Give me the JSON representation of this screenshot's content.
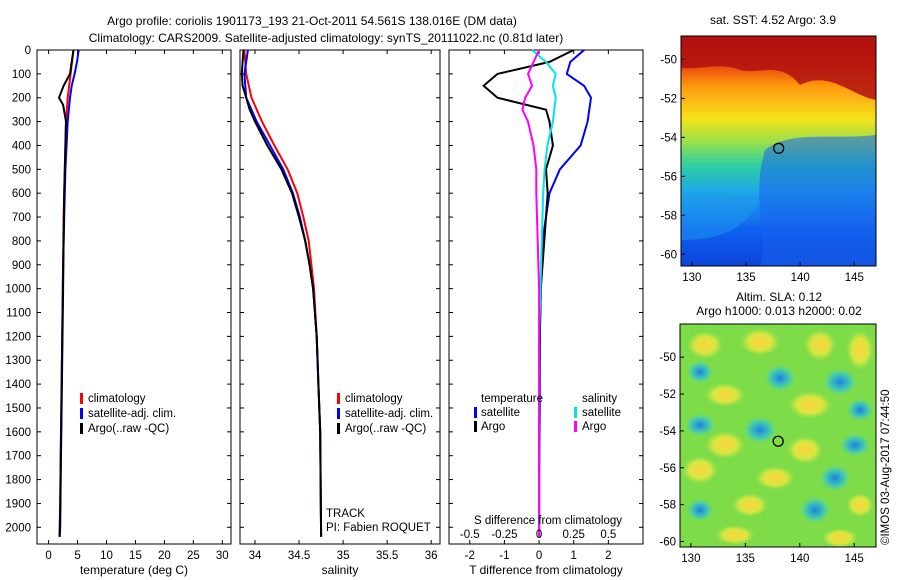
{
  "header": {
    "title_line1": "Argo profile: coriolis 1901173_193 21-Oct-2011 54.561S 138.016E (DM data)",
    "title_line2": "Climatology: CARS2009. Satellite-adjusted climatology: synTS_20111022.nc (0.81d later)"
  },
  "colors": {
    "climatology": "#ff0000",
    "satellite": "#0000ff",
    "argo": "#000000",
    "sat_salinity": "#00e5e5",
    "argo_salinity": "#ff00ff"
  },
  "chart_data": [
    {
      "type": "line",
      "id": "temperature",
      "xlabel": "temperature (deg C)",
      "ylabel": "",
      "xlim": [
        -2,
        31.5
      ],
      "ylim": [
        2070,
        0
      ],
      "xticks": [
        "0",
        "5",
        "10",
        "15",
        "20",
        "25",
        "30"
      ],
      "yticks": [
        "0",
        "100",
        "200",
        "300",
        "400",
        "500",
        "600",
        "700",
        "800",
        "900",
        "1000",
        "1100",
        "1200",
        "1300",
        "1400",
        "1500",
        "1600",
        "1700",
        "1800",
        "1900",
        "2000"
      ],
      "legend": [
        "climatology",
        "satellite-adj. clim.",
        "Argo(..raw -QC)"
      ],
      "series": [
        {
          "name": "climatology",
          "color": "#ff0000",
          "depth": [
            0,
            100,
            200,
            300,
            500,
            700,
            900,
            1100,
            1300,
            1500,
            1700,
            1900,
            2040
          ],
          "values": [
            4.3,
            3.8,
            3.3,
            3.0,
            2.8,
            2.6,
            2.5,
            2.4,
            2.3,
            2.2,
            2.1,
            2.0,
            1.9
          ]
        },
        {
          "name": "satellite-adj. clim.",
          "color": "#0000ff",
          "depth": [
            0,
            50,
            100,
            150,
            200,
            300,
            500,
            700,
            900,
            1100,
            1300,
            1500,
            1700,
            1900,
            2040
          ],
          "values": [
            5.2,
            4.9,
            4.5,
            4.0,
            3.7,
            3.3,
            2.9,
            2.7,
            2.5,
            2.4,
            2.3,
            2.2,
            2.1,
            2.0,
            1.9
          ]
        },
        {
          "name": "Argo(..raw -QC)",
          "color": "#000000",
          "depth": [
            0,
            50,
            100,
            150,
            200,
            230,
            300,
            400,
            500,
            600,
            800,
            1000,
            1200,
            1400,
            1600,
            1800,
            2000,
            2040
          ],
          "values": [
            4.3,
            4.0,
            3.7,
            2.6,
            1.8,
            2.5,
            3.0,
            2.9,
            2.8,
            2.7,
            2.6,
            2.5,
            2.4,
            2.3,
            2.2,
            2.1,
            2.0,
            1.9
          ]
        }
      ]
    },
    {
      "type": "line",
      "id": "salinity",
      "xlabel": "salinity",
      "ylabel": "",
      "xlim": [
        33.83,
        36.1
      ],
      "ylim": [
        2070,
        0
      ],
      "xticks": [
        "34",
        "34.5",
        "35",
        "35.5",
        "36"
      ],
      "legend": [
        "climatology",
        "satellite-adj. clim.",
        "Argo(..raw -QC)"
      ],
      "annotation": [
        "TRACK",
        "PI: Fabien ROQUET"
      ],
      "series": [
        {
          "name": "climatology",
          "color": "#ff0000",
          "depth": [
            0,
            100,
            200,
            300,
            400,
            500,
            600,
            700,
            800,
            900,
            1000,
            1200,
            1400,
            1600,
            1800,
            2040
          ],
          "values": [
            33.88,
            33.9,
            33.96,
            34.08,
            34.22,
            34.37,
            34.48,
            34.55,
            34.61,
            34.64,
            34.67,
            34.7,
            34.72,
            34.74,
            34.745,
            34.75
          ]
        },
        {
          "name": "satellite-adj. clim.",
          "color": "#0000ff",
          "depth": [
            0,
            50,
            100,
            200,
            300,
            400,
            500,
            600,
            700,
            800,
            900,
            1000,
            1200,
            1400,
            1600,
            1800,
            2040
          ],
          "values": [
            33.92,
            33.9,
            33.88,
            33.9,
            34.02,
            34.17,
            34.32,
            34.43,
            34.51,
            34.57,
            34.62,
            34.66,
            34.7,
            34.72,
            34.74,
            34.745,
            34.75
          ]
        },
        {
          "name": "Argo(..raw -QC)",
          "color": "#000000",
          "depth": [
            0,
            50,
            100,
            150,
            200,
            250,
            300,
            400,
            500,
            600,
            700,
            800,
            900,
            1000,
            1200,
            1400,
            1600,
            1800,
            2040
          ],
          "values": [
            33.87,
            33.86,
            33.85,
            33.86,
            33.9,
            33.94,
            34.0,
            34.14,
            34.3,
            34.42,
            34.5,
            34.57,
            34.62,
            34.66,
            34.7,
            34.72,
            34.74,
            34.745,
            34.75
          ]
        }
      ]
    },
    {
      "type": "line",
      "id": "difference",
      "xlabel": "T difference from climatology",
      "xlabel_top": "S difference from climatology",
      "xlim": [
        -2.6,
        3.0
      ],
      "ylim": [
        2070,
        0
      ],
      "xticks_T": [
        "-2",
        "-1",
        "0",
        "1",
        "2"
      ],
      "xticks_S": [
        "-0.5",
        "-0.25",
        "0",
        "0.25",
        "0.5"
      ],
      "legend_temperature": {
        "title": "temperature",
        "items": [
          "satellite",
          "Argo"
        ]
      },
      "legend_salinity": {
        "title": "salinity",
        "items": [
          "satellite",
          "Argo"
        ]
      },
      "series": [
        {
          "name": "temperature satellite",
          "color": "#0000ff",
          "depth": [
            0,
            50,
            100,
            150,
            200,
            300,
            400,
            500,
            600,
            700,
            800,
            1000,
            1200,
            1500,
            1800,
            2040
          ],
          "values": [
            1.3,
            0.9,
            0.8,
            1.3,
            1.5,
            1.4,
            1.2,
            0.6,
            0.3,
            0.2,
            0.1,
            0.05,
            0.02,
            0.02,
            0.0,
            0.0
          ]
        },
        {
          "name": "temperature Argo",
          "color": "#000000",
          "depth": [
            0,
            50,
            100,
            150,
            200,
            250,
            300,
            400,
            500,
            600,
            700,
            800,
            1000,
            1200,
            1500,
            1800,
            2040
          ],
          "values": [
            1.0,
            0.3,
            -1.2,
            -1.6,
            -1.2,
            0.2,
            0.3,
            0.4,
            0.2,
            0.25,
            0.2,
            0.15,
            0.05,
            0.02,
            0.0,
            0.0,
            0.0
          ]
        },
        {
          "name": "salinity satellite",
          "color": "#00e5e5",
          "depth": [
            0,
            50,
            100,
            150,
            200,
            300,
            400,
            500,
            600,
            800,
            1000,
            1200,
            1500,
            1800,
            2040
          ],
          "values": [
            -0.05,
            0.05,
            0.12,
            0.1,
            0.12,
            0.1,
            0.06,
            0.04,
            0.03,
            0.02,
            0.01,
            0.0,
            0.0,
            0.0,
            0.0
          ]
        },
        {
          "name": "salinity Argo",
          "color": "#ff00ff",
          "depth": [
            0,
            100,
            150,
            200,
            250,
            300,
            400,
            500,
            600,
            800,
            1000,
            1200,
            1500,
            1800,
            2040
          ],
          "values": [
            0.0,
            -0.08,
            -0.05,
            -0.1,
            -0.12,
            -0.08,
            -0.04,
            -0.02,
            -0.02,
            -0.01,
            0.0,
            0.0,
            0.0,
            0.0,
            0.0
          ]
        }
      ]
    },
    {
      "type": "heatmap",
      "id": "sst_map",
      "title": "sat. SST: 4.52 Argo: 3.9",
      "xlim": [
        129,
        147
      ],
      "ylim": [
        -60.6,
        -48.8
      ],
      "xticks": [
        "130",
        "135",
        "140",
        "145"
      ],
      "yticks": [
        "-50",
        "-52",
        "-54",
        "-56",
        "-58",
        "-60"
      ],
      "marker": {
        "lon": 138.016,
        "lat": -54.561
      }
    },
    {
      "type": "heatmap",
      "id": "sla_map",
      "title_line1": "Altim. SLA: 0.12",
      "title_line2": "Argo h1000: 0.013 h2000: 0.02",
      "xlim": [
        129,
        147
      ],
      "ylim": [
        -60.3,
        -48.2
      ],
      "xticks": [
        "130",
        "135",
        "140",
        "145"
      ],
      "yticks": [
        "-50",
        "-52",
        "-54",
        "-56",
        "-58",
        "-60"
      ],
      "marker": {
        "lon": 138.016,
        "lat": -54.561
      }
    }
  ],
  "footer": {
    "stamp": "©IMOS 03-Aug-2017 07:44:50"
  }
}
